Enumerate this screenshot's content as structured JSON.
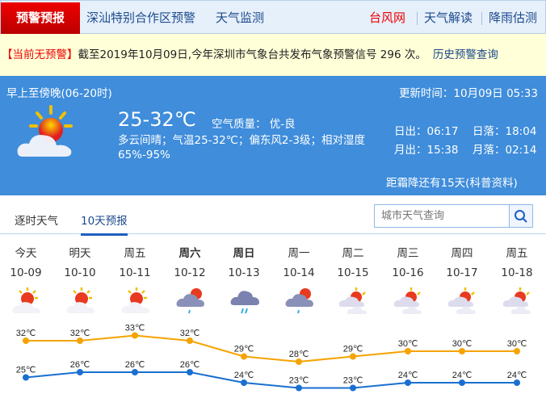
{
  "nav": {
    "active": "预警预报",
    "items": [
      "深汕特别合作区预警",
      "天气监测"
    ],
    "right": [
      {
        "label": "台风网",
        "color": "#e00000"
      },
      {
        "label": "天气解读",
        "color": "#1d4a8c"
      },
      {
        "label": "降雨估测",
        "color": "#1d4a8c"
      }
    ]
  },
  "warning": {
    "status": "【当前无预警】",
    "text": "截至2019年10月09日,今年深圳市气象台共发布气象预警信号 296 次。",
    "history_link": "历史预警查询"
  },
  "today": {
    "period": "早上至傍晚(06-20时)",
    "update": "更新时间：10月09日 05:33",
    "temp": "25-32℃",
    "air": "空气质量：  优-良",
    "desc": "多云间晴；气温25-32℃；偏东风2-3级；相对湿度65%-95%",
    "sunrise": "日出：06:17",
    "sunset": "日落：18:04",
    "moonrise": "月出：15:38",
    "moonset": "月落：02:14",
    "frost": "距霜降还有15天(科普资料)",
    "icon": "partly-sunny-icon"
  },
  "tabs": [
    "逐时天气",
    "10天预报"
  ],
  "search": {
    "placeholder": "城市天气查询"
  },
  "forecast": [
    {
      "day": "今天",
      "date": "10-09",
      "icon": "sun-cloud"
    },
    {
      "day": "明天",
      "date": "10-10",
      "icon": "sun-cloud"
    },
    {
      "day": "周五",
      "date": "10-11",
      "icon": "sun-cloud"
    },
    {
      "day": "周六",
      "date": "10-12",
      "icon": "cloud-shower",
      "weekend": true
    },
    {
      "day": "周日",
      "date": "10-13",
      "icon": "rain",
      "weekend": true
    },
    {
      "day": "周一",
      "date": "10-14",
      "icon": "cloud-shower"
    },
    {
      "day": "周二",
      "date": "10-15",
      "icon": "cloudy-sun"
    },
    {
      "day": "周三",
      "date": "10-16",
      "icon": "cloudy-sun"
    },
    {
      "day": "周四",
      "date": "10-17",
      "icon": "cloudy-sun"
    },
    {
      "day": "周五",
      "date": "10-18",
      "icon": "cloudy-sun"
    }
  ],
  "chart_data": {
    "type": "line",
    "categories": [
      "10-09",
      "10-10",
      "10-11",
      "10-12",
      "10-13",
      "10-14",
      "10-15",
      "10-16",
      "10-17",
      "10-18"
    ],
    "unit": "℃",
    "series": [
      {
        "values": [
          32,
          32,
          33,
          32,
          29,
          28,
          29,
          30,
          30,
          30
        ],
        "color": "#f5a300"
      },
      {
        "values": [
          25,
          26,
          26,
          26,
          24,
          23,
          23,
          24,
          24,
          24
        ],
        "color": "#1a6fd1"
      }
    ]
  }
}
